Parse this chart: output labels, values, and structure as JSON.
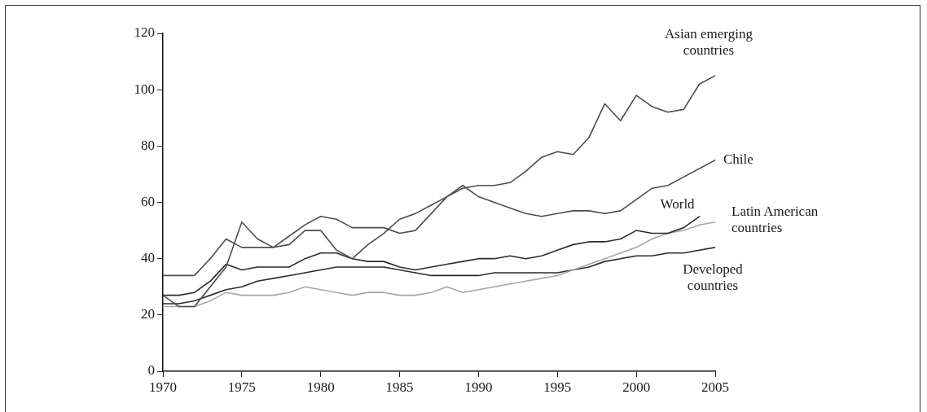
{
  "chart_data": {
    "type": "line",
    "x": [
      1970,
      1971,
      1972,
      1973,
      1974,
      1975,
      1976,
      1977,
      1978,
      1979,
      1980,
      1981,
      1982,
      1983,
      1984,
      1985,
      1986,
      1987,
      1988,
      1989,
      1990,
      1991,
      1992,
      1993,
      1994,
      1995,
      1996,
      1997,
      1998,
      1999,
      2000,
      2001,
      2002,
      2003,
      2004,
      2005
    ],
    "series": [
      {
        "name": "Asian emerging countries",
        "color": "#4d4d4d",
        "values": [
          27,
          23,
          23,
          30,
          37,
          53,
          47,
          44,
          45,
          50,
          50,
          43,
          40,
          45,
          49,
          54,
          56,
          59,
          62,
          65,
          66,
          66,
          67,
          71,
          76,
          78,
          77,
          83,
          95,
          89,
          98,
          94,
          92,
          93,
          102,
          105
        ]
      },
      {
        "name": "Chile",
        "color": "#4d4d4d",
        "values": [
          34,
          34,
          34,
          40,
          47,
          44,
          44,
          44,
          48,
          52,
          55,
          54,
          51,
          51,
          51,
          49,
          50,
          56,
          62,
          66,
          62,
          60,
          58,
          56,
          55,
          56,
          57,
          57,
          56,
          57,
          61,
          65,
          66,
          69,
          72,
          75
        ]
      },
      {
        "name": "World",
        "color": "#2b2b2b",
        "values": [
          27,
          27,
          28,
          32,
          38,
          36,
          37,
          37,
          37,
          40,
          42,
          42,
          40,
          39,
          39,
          37,
          36,
          37,
          38,
          39,
          40,
          40,
          41,
          40,
          41,
          43,
          45,
          46,
          46,
          47,
          50,
          49,
          49,
          51,
          55,
          null
        ]
      },
      {
        "name": "Latin American countries",
        "color": "#a6a6a6",
        "values": [
          23,
          23,
          23,
          25,
          28,
          27,
          27,
          27,
          28,
          30,
          29,
          28,
          27,
          28,
          28,
          27,
          27,
          28,
          30,
          28,
          29,
          30,
          31,
          32,
          33,
          34,
          36,
          38,
          40,
          42,
          44,
          47,
          49,
          50,
          52,
          53
        ]
      },
      {
        "name": "Developed countries",
        "color": "#2b2b2b",
        "values": [
          24,
          24,
          25,
          27,
          29,
          30,
          32,
          33,
          34,
          35,
          36,
          37,
          37,
          37,
          37,
          36,
          35,
          34,
          34,
          34,
          34,
          35,
          35,
          35,
          35,
          35,
          36,
          37,
          39,
          40,
          41,
          41,
          42,
          42,
          43,
          44
        ]
      }
    ],
    "xlim": [
      1970,
      2005
    ],
    "xticks": [
      1970,
      1975,
      1980,
      1985,
      1990,
      1995,
      2000,
      2005
    ],
    "ylim": [
      0,
      120
    ],
    "yticks": [
      0,
      20,
      40,
      60,
      80,
      100,
      120
    ],
    "grid": false,
    "legend": false,
    "marker": "none",
    "line_style": "solid"
  }
}
